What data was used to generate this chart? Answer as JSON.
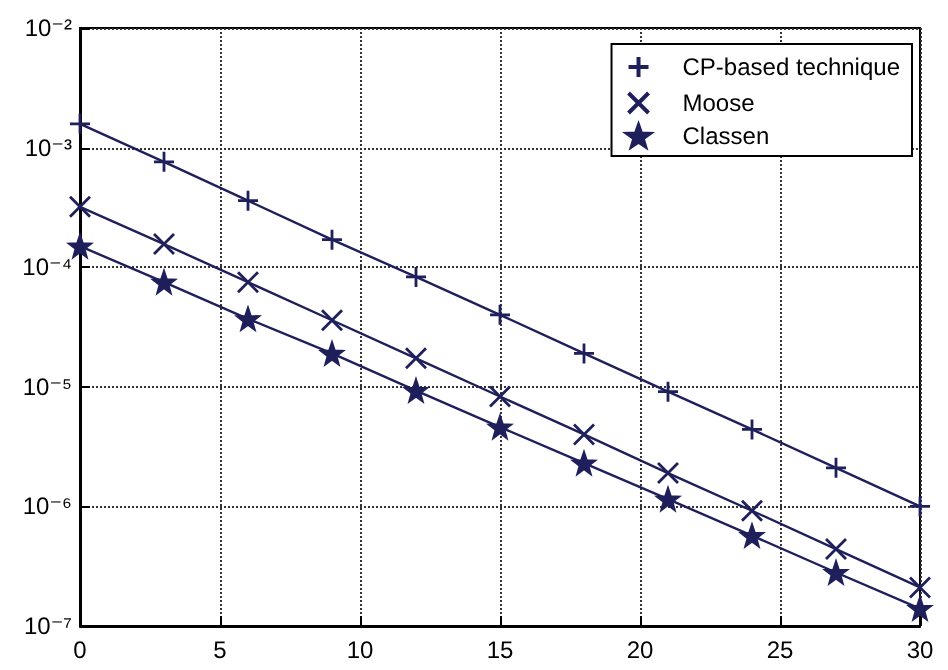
{
  "chart_data": {
    "type": "line",
    "x": [
      0,
      3,
      6,
      9,
      12,
      15,
      18,
      21,
      24,
      27,
      30
    ],
    "series": [
      {
        "name": "CP-based technique",
        "color": "#1f1f5c",
        "marker": "cross",
        "values": [
          0.00158,
          0.00076,
          0.00036,
          0.00017,
          8.3e-05,
          4e-05,
          1.9e-05,
          9.1e-06,
          4.4e-06,
          2.1e-06,
          1e-06
        ]
      },
      {
        "name": "Moose",
        "color": "#1f1f5c",
        "marker": "x",
        "values": [
          0.00032,
          0.000156,
          7.5e-05,
          3.6e-05,
          1.73e-05,
          8.3e-06,
          4e-06,
          1.9e-06,
          9.2e-07,
          4.4e-07,
          2.1e-07
        ]
      },
      {
        "name": "Classen",
        "color": "#1f1f5c",
        "marker": "star",
        "values": [
          0.00015,
          7.5e-05,
          3.7e-05,
          1.9e-05,
          9.3e-06,
          4.6e-06,
          2.3e-06,
          1.15e-06,
          5.7e-07,
          2.8e-07,
          1.4e-07
        ]
      }
    ],
    "xlim": [
      0,
      30
    ],
    "xticks": [
      0,
      5,
      10,
      15,
      20,
      25,
      30
    ],
    "ylim": [
      1e-07,
      0.01
    ],
    "yticks": [
      {
        "value": 1e-07,
        "label": "10⁻⁷"
      },
      {
        "value": 1e-06,
        "label": "10⁻⁶"
      },
      {
        "value": 1e-05,
        "label": "10⁻⁵"
      },
      {
        "value": 0.0001,
        "label": "10⁻⁴"
      },
      {
        "value": 0.001,
        "label": "10⁻³"
      },
      {
        "value": 0.01,
        "label": "10⁻²"
      }
    ],
    "log": "y",
    "grid": true,
    "legend": "top right",
    "line_style": "solid"
  }
}
